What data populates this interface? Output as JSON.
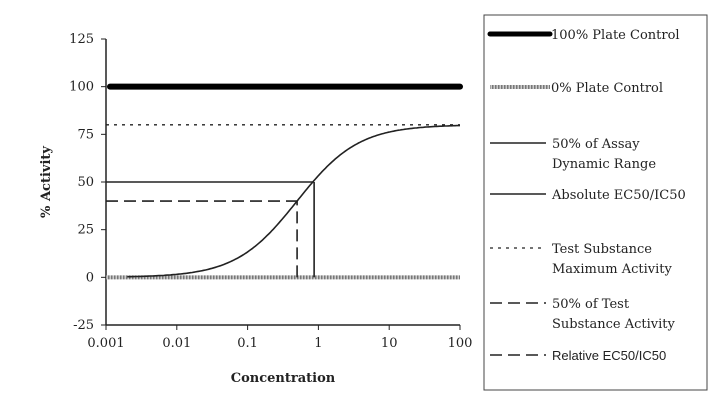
{
  "chart_data": {
    "type": "line",
    "title": "",
    "xlabel": "Concentration",
    "ylabel": "% Activity",
    "xscale": "log",
    "xlim": [
      0.001,
      100
    ],
    "ylim": [
      -25,
      125
    ],
    "xticks": [
      "0.001",
      "0.01",
      "0.1",
      "1",
      "10",
      "100"
    ],
    "yticks": [
      "-25",
      "0",
      "25",
      "50",
      "75",
      "100",
      "125"
    ],
    "curve": {
      "model": "4PL",
      "bottom": 0,
      "top": 80,
      "ec50": 0.5,
      "hill": 1,
      "x_start": 0.002,
      "x_end": 100
    },
    "series": [
      {
        "name": "100% Plate Control",
        "y": 100,
        "style": "thick"
      },
      {
        "name": "0% Plate Control",
        "y": 0,
        "style": "hatched"
      },
      {
        "name": "50% of Assay Dynamic Range",
        "y": 50,
        "x_end": 0.87,
        "style": "solid"
      },
      {
        "name": "Absolute EC50/IC50",
        "x": 0.87,
        "y_end": 50,
        "style": "solid"
      },
      {
        "name": "Test Substance Maximum Activity",
        "y": 80,
        "style": "dotted"
      },
      {
        "name": "50% of Test Substance Activity",
        "y": 40,
        "x_end": 0.5,
        "style": "dashed"
      },
      {
        "name": "Relative EC50/IC50",
        "x": 0.5,
        "y_end": 40,
        "style": "dashed"
      }
    ],
    "legend": {
      "placement": "right",
      "entries": [
        {
          "lines": [
            "100% Plate Control"
          ]
        },
        {
          "lines": [
            "0% Plate Control"
          ]
        },
        {
          "lines": [
            "50% of Assay",
            "Dynamic Range"
          ]
        },
        {
          "lines": [
            "Absolute EC50/IC50"
          ]
        },
        {
          "lines": [
            "Test Substance",
            "Maximum Activity"
          ]
        },
        {
          "lines": [
            "50% of Test",
            "Substance Activity"
          ]
        },
        {
          "lines": [
            "Relative EC50/IC50"
          ]
        }
      ]
    }
  }
}
